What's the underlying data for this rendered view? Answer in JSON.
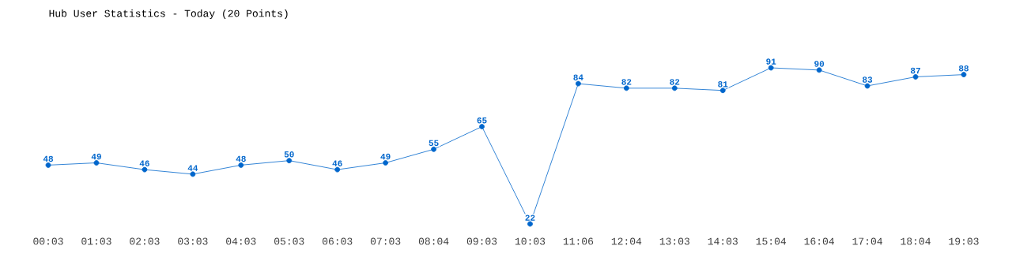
{
  "chart_data": {
    "type": "line",
    "title": "Hub User Statistics - Today (20 Points)",
    "categories": [
      "00:03",
      "01:03",
      "02:03",
      "03:03",
      "04:03",
      "05:03",
      "06:03",
      "07:03",
      "08:04",
      "09:03",
      "10:03",
      "11:06",
      "12:04",
      "13:03",
      "14:03",
      "15:04",
      "16:04",
      "17:04",
      "18:04",
      "19:03"
    ],
    "series": [
      {
        "color": "#0066cc",
        "values": [
          48,
          49,
          46,
          44,
          48,
          50,
          46,
          49,
          55,
          65,
          22,
          84,
          82,
          82,
          81,
          91,
          90,
          83,
          87,
          88
        ]
      }
    ],
    "data_labels": true,
    "marker": "circle",
    "line_style": "solid"
  }
}
